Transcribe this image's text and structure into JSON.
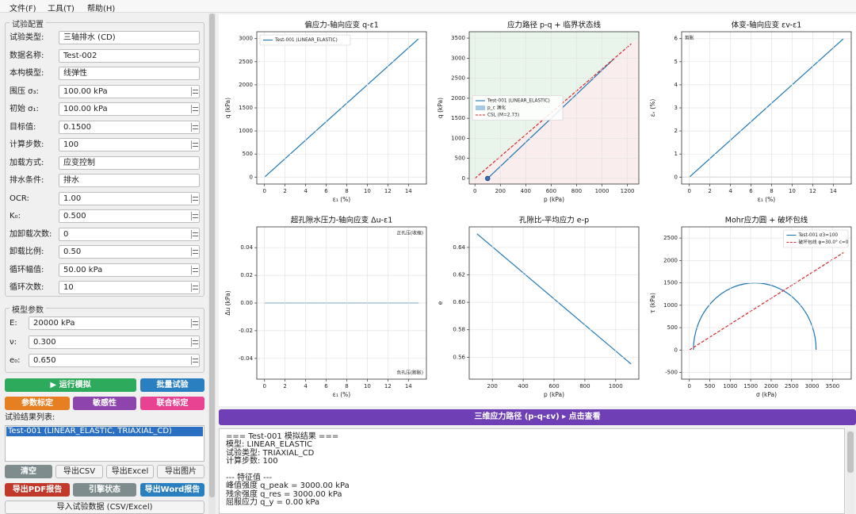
{
  "menu": [
    "文件(F)",
    "工具(T)",
    "帮助(H)"
  ],
  "config": {
    "title": "试验配置",
    "fields": [
      {
        "label": "试验类型:",
        "value": "三轴排水 (CD)"
      },
      {
        "label": "数据名称:",
        "value": "Test-002"
      },
      {
        "label": "本构模型:",
        "value": "线弹性"
      },
      {
        "label": "围压 σ₃:",
        "value": "100.00 kPa",
        "spin": true
      },
      {
        "label": "初始 σ₁:",
        "value": "100.00 kPa",
        "spin": true
      },
      {
        "label": "目标值:",
        "value": "0.1500",
        "spin": true
      },
      {
        "label": "计算步数:",
        "value": "100",
        "spin": true
      },
      {
        "label": "加载方式:",
        "value": "应变控制"
      },
      {
        "label": "排水条件:",
        "value": "排水"
      },
      {
        "label": "OCR:",
        "value": "1.00",
        "spin": true
      },
      {
        "label": "K₀:",
        "value": "0.500",
        "spin": true
      },
      {
        "label": "加卸载次数:",
        "value": "0",
        "spin": true
      },
      {
        "label": "卸载比例:",
        "value": "0.50",
        "spin": true
      },
      {
        "label": "循环幅值:",
        "value": "50.00 kPa",
        "spin": true
      },
      {
        "label": "循环次数:",
        "value": "10",
        "spin": true
      }
    ]
  },
  "model": {
    "title": "模型参数",
    "fields": [
      {
        "label": "E:",
        "value": "20000 kPa",
        "spin": true
      },
      {
        "label": "ν:",
        "value": "0.300",
        "spin": true
      },
      {
        "label": "e₀:",
        "value": "0.650",
        "spin": true
      }
    ]
  },
  "buttons": [
    [
      {
        "text": "▶ 运行模拟",
        "color": "#2eaa5c"
      },
      {
        "text": "批量试验",
        "color": "#2a7fc1"
      }
    ],
    [
      {
        "text": "参数标定",
        "color": "#e67e22"
      },
      {
        "text": "敏感性",
        "color": "#8e44ad"
      },
      {
        "text": "联合标定",
        "color": "#e84393"
      }
    ],
    [
      {
        "text": "清空",
        "color": "#7f8c8d"
      },
      {
        "text": "导出CSV"
      },
      {
        "text": "导出Excel"
      },
      {
        "text": "导出图片"
      }
    ],
    [
      {
        "text": "导出PDF报告",
        "color": "#c0392b"
      },
      {
        "text": "引擎状态",
        "color": "#7f8c8d"
      },
      {
        "text": "导出Word报告",
        "color": "#2a7fc1"
      }
    ],
    [
      {
        "text": "导入试验数据 (CSV/Excel)"
      }
    ]
  ],
  "results": {
    "label": "试验结果列表:",
    "items": [
      "Test-001 (LINEAR_ELASTIC, TRIAXIAL_CD)"
    ]
  },
  "view3d": "三维应力路径 (p-q-εv)  ▸ 点击查看",
  "output": [
    "=== Test-001 模拟结果 ===",
    "模型: LINEAR_ELASTIC",
    "试验类型: TRIAXIAL_CD",
    "计算步数: 100",
    "--- 特征值 ---",
    "峰值强度 q_peak = 3000.00 kPa",
    "残余强度 q_res = 3000.00 kPa",
    "屈服应力 q_y = 0.00 kPa"
  ],
  "chart_data": [
    {
      "type": "line",
      "title": "偏应力-轴向应变  q-ε1",
      "xlabel": "ε₁ (%)",
      "ylabel": "q (kPa)",
      "xlim": [
        -0.75,
        15.75
      ],
      "ylim": [
        -150,
        3150
      ],
      "xticks": [
        0,
        2,
        4,
        6,
        8,
        10,
        12,
        14
      ],
      "yticks": [
        0,
        500,
        1000,
        1500,
        2000,
        2500,
        3000
      ],
      "grid": true,
      "legend": "upper left",
      "series": [
        {
          "name": "Test-001 (LINEAR_ELASTIC)",
          "color": "#1f77b4",
          "x": [
            0,
            15
          ],
          "values": [
            0,
            3000
          ]
        }
      ]
    },
    {
      "type": "line",
      "title": "应力路径 p-q + 临界状态线",
      "xlabel": "p (kPa)",
      "ylabel": "q (kPa)",
      "xlim": [
        -45,
        1290
      ],
      "ylim": [
        -140,
        3660
      ],
      "xticks": [
        0,
        200,
        400,
        600,
        800,
        1000,
        1200
      ],
      "yticks": [
        0,
        500,
        1000,
        1500,
        2000,
        2500,
        3000,
        3500
      ],
      "grid": true,
      "legend": "center left",
      "shade": {
        "above": "#e9f5ea",
        "below": "#f9eded"
      },
      "series": [
        {
          "name": "Test-001 (LINEAR_ELASTIC)",
          "color": "#1f77b4",
          "x": [
            100,
            1100
          ],
          "values": [
            0,
            3000
          ],
          "marker": "start"
        },
        {
          "name": "p_c 演化",
          "color": "#a6c8e8",
          "kind": "patch"
        },
        {
          "name": "CSL (M=2.73)",
          "color": "#d62728",
          "style": "dashed",
          "x": [
            0,
            1230
          ],
          "values": [
            0,
            3358
          ]
        }
      ]
    },
    {
      "type": "line",
      "title": "体变-轴向应变  εv-ε1",
      "xlabel": "ε₁ (%)",
      "ylabel": "εᵥ (%)",
      "xlim": [
        -0.75,
        15.75
      ],
      "ylim": [
        -0.3,
        6.3
      ],
      "xticks": [
        0,
        2,
        4,
        6,
        8,
        10,
        12,
        14
      ],
      "yticks": [
        0,
        1,
        2,
        3,
        4,
        5,
        6
      ],
      "grid": true,
      "axhline": 0,
      "annotations": [
        {
          "text": "剪胀",
          "color": "#d62728",
          "corner": "upper left"
        }
      ],
      "series": [
        {
          "color": "#1f77b4",
          "x": [
            0,
            15
          ],
          "values": [
            0,
            6
          ]
        }
      ]
    },
    {
      "type": "line",
      "title": "超孔隙水压力-轴向应变  Δu-ε1",
      "xlabel": "ε₁ (%)",
      "ylabel": "Δu (kPa)",
      "xlim": [
        -0.75,
        15.75
      ],
      "ylim": [
        -0.055,
        0.055
      ],
      "xticks": [
        0,
        2,
        4,
        6,
        8,
        10,
        12,
        14
      ],
      "yticks": [
        -0.04,
        -0.02,
        {
          "value": 0,
          "label": "0.00"
        },
        0.02,
        0.04
      ],
      "grid": true,
      "annotations": [
        {
          "text": "正孔压(收缩)",
          "color": "#d62728",
          "corner": "upper right"
        },
        {
          "text": "负孔压(膨胀)",
          "color": "#1f77b4",
          "corner": "lower right"
        }
      ],
      "series": [
        {
          "color": "#1f77b4",
          "x": [
            0,
            15
          ],
          "values": [
            0,
            0
          ]
        }
      ]
    },
    {
      "type": "line",
      "title": "孔隙比-平均应力  e-p",
      "xlabel": "p (kPa)",
      "ylabel": "e",
      "xlim": [
        50,
        1150
      ],
      "ylim": [
        0.544,
        0.655
      ],
      "xticks": [
        200,
        400,
        600,
        800,
        1000
      ],
      "yticks": [
        0.56,
        0.58,
        {
          "value": 0.6,
          "label": "0.60"
        },
        0.62,
        0.64
      ],
      "grid": true,
      "series": [
        {
          "color": "#1f77b4",
          "x": [
            100,
            1100
          ],
          "values": [
            0.65,
            0.555
          ]
        }
      ]
    },
    {
      "type": "line",
      "title": "Mohr应力圆 + 破坏包线",
      "xlabel": "σ (kPa)",
      "ylabel": "τ (kPa)",
      "xlim": [
        -188,
        3958
      ],
      "ylim": [
        -650,
        2750
      ],
      "xticks": [
        0,
        500,
        1000,
        1500,
        2000,
        2500,
        3000,
        3500
      ],
      "yticks": [
        -500,
        0,
        500,
        1000,
        1500,
        2000,
        2500
      ],
      "grid": true,
      "legend": "upper right",
      "series": [
        {
          "name": "Test-001 σ3=100",
          "color": "#1f77b4",
          "kind": "circle",
          "sigma3": 100,
          "sigma1": 3100
        },
        {
          "name": "破坏包线 φ=30.0° c=0",
          "color": "#d62728",
          "style": "dashed",
          "x": [
            0,
            3770
          ],
          "values": [
            0,
            2176
          ]
        }
      ]
    }
  ]
}
